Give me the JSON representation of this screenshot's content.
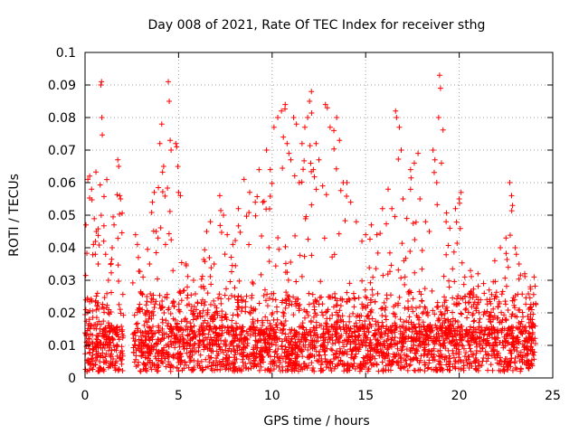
{
  "chart_data": {
    "type": "scatter",
    "title": "Day 008 of 2021, Rate Of TEC Index for receiver sthg",
    "xlabel": "GPS time / hours",
    "ylabel": "ROTI / TECUs",
    "xlim": [
      0,
      25
    ],
    "ylim": [
      0,
      0.1
    ],
    "x_ticks": [
      0,
      5,
      10,
      15,
      20,
      25
    ],
    "x_tick_labels": [
      "0",
      "5",
      "10",
      "15",
      "20",
      "25"
    ],
    "y_ticks": [
      0,
      0.01,
      0.02,
      0.03,
      0.04,
      0.05,
      0.06,
      0.07,
      0.08,
      0.09,
      0.1
    ],
    "y_tick_labels": [
      "0",
      "0.01",
      "0.02",
      "0.03",
      "0.04",
      "0.05",
      "0.06",
      "0.07",
      "0.08",
      "0.09",
      "0.1"
    ],
    "grid": true,
    "marker": "plus",
    "color": "#ff0000",
    "data_gap_hours": [
      2.05,
      2.55
    ],
    "series": [
      {
        "name": "ROTI",
        "points": [
          [
            0.05,
            0.047
          ],
          [
            0.15,
            0.061
          ],
          [
            0.25,
            0.062
          ],
          [
            0.35,
            0.058
          ],
          [
            0.45,
            0.041
          ],
          [
            0.55,
            0.038
          ],
          [
            0.6,
            0.045
          ],
          [
            0.7,
            0.035
          ],
          [
            0.85,
            0.09
          ],
          [
            0.88,
            0.091
          ],
          [
            0.9,
            0.08
          ],
          [
            1.0,
            0.042
          ],
          [
            1.1,
            0.038
          ],
          [
            1.25,
            0.03
          ],
          [
            1.45,
            0.04
          ],
          [
            1.55,
            0.047
          ],
          [
            1.75,
            0.067
          ],
          [
            1.8,
            0.065
          ],
          [
            1.85,
            0.056
          ],
          [
            1.9,
            0.055
          ],
          [
            2.7,
            0.044
          ],
          [
            2.8,
            0.041
          ],
          [
            3.1,
            0.031
          ],
          [
            3.3,
            0.025
          ],
          [
            3.45,
            0.035
          ],
          [
            3.6,
            0.054
          ],
          [
            3.7,
            0.057
          ],
          [
            3.8,
            0.045
          ],
          [
            3.9,
            0.043
          ],
          [
            4.0,
            0.072
          ],
          [
            4.1,
            0.078
          ],
          [
            4.2,
            0.065
          ],
          [
            4.3,
            0.041
          ],
          [
            4.45,
            0.091
          ],
          [
            4.5,
            0.085
          ],
          [
            4.55,
            0.073
          ],
          [
            4.6,
            0.07
          ],
          [
            4.7,
            0.033
          ],
          [
            4.85,
            0.072
          ],
          [
            4.9,
            0.071
          ],
          [
            5.0,
            0.057
          ],
          [
            5.1,
            0.056
          ],
          [
            5.4,
            0.035
          ],
          [
            5.8,
            0.03
          ],
          [
            6.2,
            0.028
          ],
          [
            6.5,
            0.045
          ],
          [
            6.7,
            0.048
          ],
          [
            6.9,
            0.035
          ],
          [
            7.2,
            0.056
          ],
          [
            7.4,
            0.05
          ],
          [
            7.6,
            0.044
          ],
          [
            7.9,
            0.041
          ],
          [
            8.2,
            0.052
          ],
          [
            8.5,
            0.061
          ],
          [
            8.8,
            0.057
          ],
          [
            9.1,
            0.054
          ],
          [
            9.3,
            0.064
          ],
          [
            9.5,
            0.054
          ],
          [
            9.7,
            0.07
          ],
          [
            9.9,
            0.064
          ],
          [
            10.1,
            0.077
          ],
          [
            10.3,
            0.08
          ],
          [
            10.5,
            0.082
          ],
          [
            10.6,
            0.074
          ],
          [
            10.7,
            0.084
          ],
          [
            10.8,
            0.072
          ],
          [
            10.9,
            0.069
          ],
          [
            11.0,
            0.067
          ],
          [
            11.15,
            0.08
          ],
          [
            11.3,
            0.078
          ],
          [
            11.45,
            0.06
          ],
          [
            11.6,
            0.072
          ],
          [
            11.75,
            0.077
          ],
          [
            11.9,
            0.08
          ],
          [
            12.0,
            0.085
          ],
          [
            12.1,
            0.088
          ],
          [
            12.2,
            0.064
          ],
          [
            12.35,
            0.072
          ],
          [
            12.5,
            0.067
          ],
          [
            12.7,
            0.059
          ],
          [
            12.85,
            0.084
          ],
          [
            12.95,
            0.083
          ],
          [
            13.1,
            0.077
          ],
          [
            13.3,
            0.076
          ],
          [
            13.45,
            0.08
          ],
          [
            13.6,
            0.073
          ],
          [
            13.8,
            0.06
          ],
          [
            14.0,
            0.06
          ],
          [
            14.2,
            0.054
          ],
          [
            14.5,
            0.048
          ],
          [
            14.8,
            0.042
          ],
          [
            15.0,
            0.044
          ],
          [
            15.3,
            0.047
          ],
          [
            15.6,
            0.044
          ],
          [
            15.9,
            0.052
          ],
          [
            16.2,
            0.058
          ],
          [
            16.4,
            0.052
          ],
          [
            16.6,
            0.082
          ],
          [
            16.65,
            0.08
          ],
          [
            16.8,
            0.077
          ],
          [
            16.9,
            0.07
          ],
          [
            17.0,
            0.055
          ],
          [
            17.2,
            0.049
          ],
          [
            17.4,
            0.064
          ],
          [
            17.6,
            0.066
          ],
          [
            17.8,
            0.069
          ],
          [
            17.9,
            0.055
          ],
          [
            18.2,
            0.048
          ],
          [
            18.4,
            0.045
          ],
          [
            18.6,
            0.07
          ],
          [
            18.7,
            0.067
          ],
          [
            18.8,
            0.06
          ],
          [
            18.9,
            0.08
          ],
          [
            18.95,
            0.093
          ],
          [
            19.0,
            0.089
          ],
          [
            19.05,
            0.066
          ],
          [
            19.3,
            0.048
          ],
          [
            19.5,
            0.046
          ],
          [
            19.8,
            0.052
          ],
          [
            20.0,
            0.055
          ],
          [
            20.1,
            0.057
          ],
          [
            20.3,
            0.031
          ],
          [
            20.6,
            0.033
          ],
          [
            21.0,
            0.032
          ],
          [
            21.3,
            0.029
          ],
          [
            21.6,
            0.027
          ],
          [
            21.9,
            0.036
          ],
          [
            22.2,
            0.04
          ],
          [
            22.5,
            0.043
          ],
          [
            22.7,
            0.06
          ],
          [
            22.8,
            0.056
          ],
          [
            22.85,
            0.053
          ],
          [
            23.0,
            0.04
          ],
          [
            23.2,
            0.035
          ],
          [
            23.5,
            0.032
          ],
          [
            23.8,
            0.028
          ],
          [
            24.0,
            0.031
          ]
        ]
      }
    ]
  }
}
